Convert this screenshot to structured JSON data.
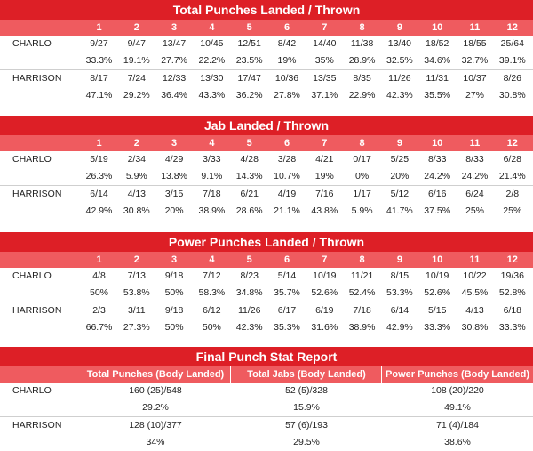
{
  "total": {
    "title": "Total Punches Landed / Thrown",
    "rounds": [
      "1",
      "2",
      "3",
      "4",
      "5",
      "6",
      "7",
      "8",
      "9",
      "10",
      "11",
      "12"
    ],
    "charlo": {
      "name": "CHARLO",
      "landed": [
        "9/27",
        "9/47",
        "13/47",
        "10/45",
        "12/51",
        "8/42",
        "14/40",
        "11/38",
        "13/40",
        "18/52",
        "18/55",
        "25/64"
      ],
      "pct": [
        "33.3%",
        "19.1%",
        "27.7%",
        "22.2%",
        "23.5%",
        "19%",
        "35%",
        "28.9%",
        "32.5%",
        "34.6%",
        "32.7%",
        "39.1%"
      ]
    },
    "harrison": {
      "name": "HARRISON",
      "landed": [
        "8/17",
        "7/24",
        "12/33",
        "13/30",
        "17/47",
        "10/36",
        "13/35",
        "8/35",
        "11/26",
        "11/31",
        "10/37",
        "8/26"
      ],
      "pct": [
        "47.1%",
        "29.2%",
        "36.4%",
        "43.3%",
        "36.2%",
        "27.8%",
        "37.1%",
        "22.9%",
        "42.3%",
        "35.5%",
        "27%",
        "30.8%"
      ]
    }
  },
  "jab": {
    "title": "Jab Landed / Thrown",
    "rounds": [
      "1",
      "2",
      "3",
      "4",
      "5",
      "6",
      "7",
      "8",
      "9",
      "10",
      "11",
      "12"
    ],
    "charlo": {
      "name": "CHARLO",
      "landed": [
        "5/19",
        "2/34",
        "4/29",
        "3/33",
        "4/28",
        "3/28",
        "4/21",
        "0/17",
        "5/25",
        "8/33",
        "8/33",
        "6/28"
      ],
      "pct": [
        "26.3%",
        "5.9%",
        "13.8%",
        "9.1%",
        "14.3%",
        "10.7%",
        "19%",
        "0%",
        "20%",
        "24.2%",
        "24.2%",
        "21.4%"
      ]
    },
    "harrison": {
      "name": "HARRISON",
      "landed": [
        "6/14",
        "4/13",
        "3/15",
        "7/18",
        "6/21",
        "4/19",
        "7/16",
        "1/17",
        "5/12",
        "6/16",
        "6/24",
        "2/8"
      ],
      "pct": [
        "42.9%",
        "30.8%",
        "20%",
        "38.9%",
        "28.6%",
        "21.1%",
        "43.8%",
        "5.9%",
        "41.7%",
        "37.5%",
        "25%",
        "25%"
      ]
    }
  },
  "power": {
    "title": "Power Punches Landed / Thrown",
    "rounds": [
      "1",
      "2",
      "3",
      "4",
      "5",
      "6",
      "7",
      "8",
      "9",
      "10",
      "11",
      "12"
    ],
    "charlo": {
      "name": "CHARLO",
      "landed": [
        "4/8",
        "7/13",
        "9/18",
        "7/12",
        "8/23",
        "5/14",
        "10/19",
        "11/21",
        "8/15",
        "10/19",
        "10/22",
        "19/36"
      ],
      "pct": [
        "50%",
        "53.8%",
        "50%",
        "58.3%",
        "34.8%",
        "35.7%",
        "52.6%",
        "52.4%",
        "53.3%",
        "52.6%",
        "45.5%",
        "52.8%"
      ]
    },
    "harrison": {
      "name": "HARRISON",
      "landed": [
        "2/3",
        "3/11",
        "9/18",
        "6/12",
        "11/26",
        "6/17",
        "6/19",
        "7/18",
        "6/14",
        "5/15",
        "4/13",
        "6/18"
      ],
      "pct": [
        "66.7%",
        "27.3%",
        "50%",
        "50%",
        "42.3%",
        "35.3%",
        "31.6%",
        "38.9%",
        "42.9%",
        "33.3%",
        "30.8%",
        "33.3%"
      ]
    }
  },
  "final": {
    "title": "Final Punch Stat Report",
    "headers": [
      "Total Punches (Body Landed)",
      "Total Jabs (Body Landed)",
      "Power Punches (Body Landed)"
    ],
    "charlo": {
      "name": "CHARLO",
      "values": [
        "160 (25)/548",
        "52 (5)/328",
        "108 (20)/220"
      ],
      "pct": [
        "29.2%",
        "15.9%",
        "49.1%"
      ]
    },
    "harrison": {
      "name": "HARRISON",
      "values": [
        "128 (10)/377",
        "57 (6)/193",
        "71 (4)/184"
      ],
      "pct": [
        "34%",
        "29.5%",
        "38.6%"
      ]
    }
  }
}
